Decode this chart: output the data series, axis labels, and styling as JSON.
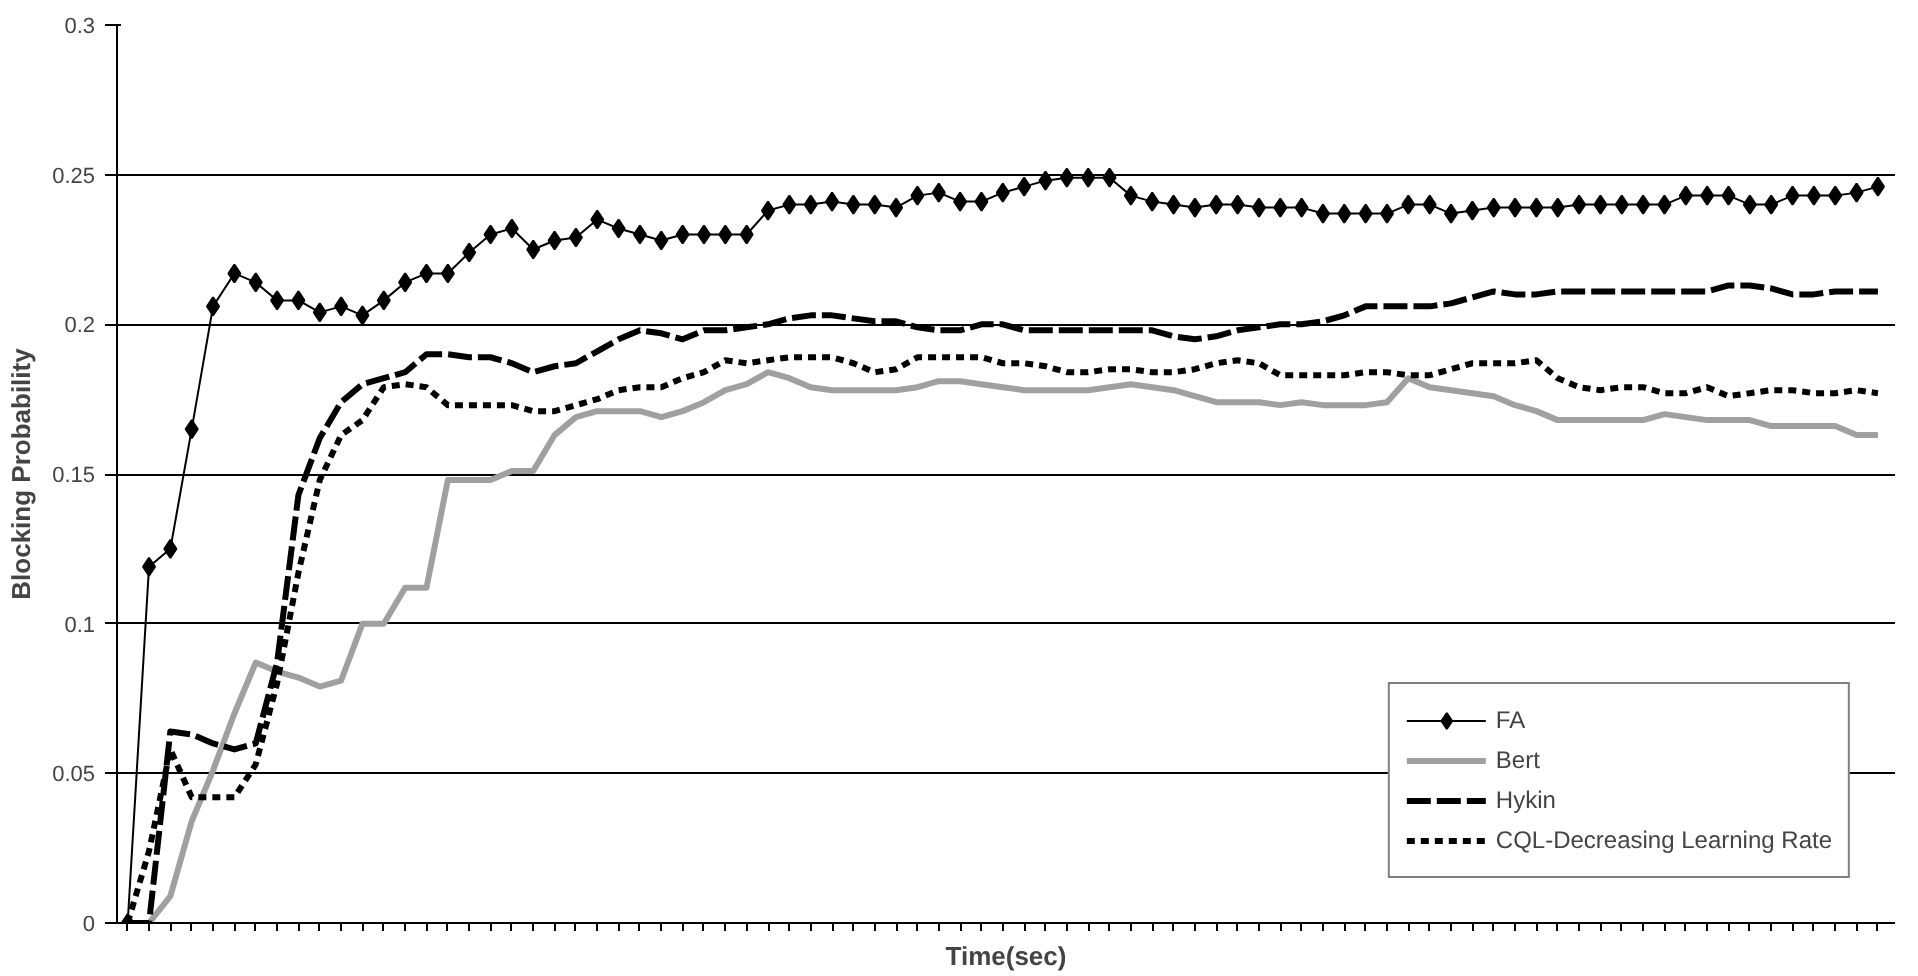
{
  "chart_data": {
    "type": "line",
    "xlabel": "Time(sec)",
    "ylabel": "Blocking Probability",
    "categories": [
      null,
      null,
      null,
      null,
      null,
      null,
      null,
      null,
      null,
      null,
      null,
      null,
      null,
      null,
      null,
      null,
      null,
      null,
      null,
      null,
      null,
      null,
      null,
      null,
      null,
      null,
      null,
      null,
      null,
      null,
      null,
      null,
      null,
      null,
      null,
      null,
      null,
      null,
      null,
      null,
      null,
      null,
      null,
      null,
      null,
      null,
      null,
      null,
      null,
      null,
      null,
      null,
      null,
      null,
      null,
      null,
      null,
      null,
      null,
      null,
      null,
      null,
      null,
      null,
      null,
      null,
      null,
      null,
      null,
      null,
      null,
      null,
      null,
      null,
      null,
      null,
      null,
      null,
      null,
      null,
      null,
      null,
      null
    ],
    "ylim": [
      0,
      0.3
    ],
    "yticks": [
      0,
      0.05,
      0.1,
      0.15,
      0.2,
      0.25,
      0.3
    ],
    "grid": "y",
    "legend": "bottom right",
    "series": [
      {
        "name": "FA",
        "color": "#000000",
        "marker": "diamond",
        "line_style": "solid",
        "values": [
          0,
          0.119,
          0.125,
          0.165,
          0.206,
          0.217,
          0.214,
          0.208,
          0.208,
          0.204,
          0.206,
          0.203,
          0.208,
          0.214,
          0.217,
          0.217,
          0.224,
          0.23,
          0.232,
          0.225,
          0.228,
          0.229,
          0.235,
          0.232,
          0.23,
          0.228,
          0.23,
          0.23,
          0.23,
          0.23,
          0.238,
          0.24,
          0.24,
          0.241,
          0.24,
          0.24,
          0.239,
          0.243,
          0.244,
          0.241,
          0.241,
          0.244,
          0.246,
          0.248,
          0.249,
          0.249,
          0.249,
          0.243,
          0.241,
          0.24,
          0.239,
          0.24,
          0.24,
          0.239,
          0.239,
          0.239,
          0.237,
          0.237,
          0.237,
          0.237,
          0.24,
          0.24,
          0.237,
          0.238,
          0.239,
          0.239,
          0.239,
          0.239,
          0.24,
          0.24,
          0.24,
          0.24,
          0.24,
          0.243,
          0.243,
          0.243,
          0.24,
          0.24,
          0.243,
          0.243,
          0.243,
          0.244,
          0.246
        ]
      },
      {
        "name": "Bert",
        "color": "#a0a0a0",
        "marker": "none",
        "line_style": "solid",
        "values": [
          0,
          0,
          0.009,
          0.034,
          0.051,
          0.07,
          0.087,
          0.084,
          0.082,
          0.079,
          0.081,
          0.1,
          0.1,
          0.112,
          0.112,
          0.148,
          0.148,
          0.148,
          0.151,
          0.151,
          0.163,
          0.169,
          0.171,
          0.171,
          0.171,
          0.169,
          0.171,
          0.174,
          0.178,
          0.18,
          0.184,
          0.182,
          0.179,
          0.178,
          0.178,
          0.178,
          0.178,
          0.179,
          0.181,
          0.181,
          0.18,
          0.179,
          0.178,
          0.178,
          0.178,
          0.178,
          0.179,
          0.18,
          0.179,
          0.178,
          0.176,
          0.174,
          0.174,
          0.174,
          0.173,
          0.174,
          0.173,
          0.173,
          0.173,
          0.174,
          0.182,
          0.179,
          0.178,
          0.177,
          0.176,
          0.173,
          0.171,
          0.168,
          0.168,
          0.168,
          0.168,
          0.168,
          0.17,
          0.169,
          0.168,
          0.168,
          0.168,
          0.166,
          0.166,
          0.166,
          0.166,
          0.163,
          0.163
        ]
      },
      {
        "name": "Hykin",
        "color": "#000000",
        "marker": "none",
        "line_style": "dashed",
        "values": [
          0,
          0,
          0.064,
          0.063,
          0.06,
          0.058,
          0.06,
          0.087,
          0.143,
          0.162,
          0.174,
          0.18,
          0.182,
          0.184,
          0.19,
          0.19,
          0.189,
          0.189,
          0.187,
          0.184,
          0.186,
          0.187,
          0.191,
          0.195,
          0.198,
          0.197,
          0.195,
          0.198,
          0.198,
          0.199,
          0.2,
          0.202,
          0.203,
          0.203,
          0.202,
          0.201,
          0.201,
          0.199,
          0.198,
          0.198,
          0.2,
          0.2,
          0.198,
          0.198,
          0.198,
          0.198,
          0.198,
          0.198,
          0.198,
          0.196,
          0.195,
          0.196,
          0.198,
          0.199,
          0.2,
          0.2,
          0.201,
          0.203,
          0.206,
          0.206,
          0.206,
          0.206,
          0.207,
          0.209,
          0.211,
          0.21,
          0.21,
          0.211,
          0.211,
          0.211,
          0.211,
          0.211,
          0.211,
          0.211,
          0.211,
          0.213,
          0.213,
          0.212,
          0.21,
          0.21,
          0.211,
          0.211,
          0.211
        ]
      },
      {
        "name": "CQL-Decreasing Learning Rate",
        "color": "#000000",
        "marker": "none",
        "line_style": "dotted",
        "values": [
          0,
          0.024,
          0.058,
          0.042,
          0.042,
          0.042,
          0.053,
          0.08,
          0.117,
          0.148,
          0.163,
          0.168,
          0.179,
          0.18,
          0.179,
          0.173,
          0.173,
          0.173,
          0.173,
          0.171,
          0.171,
          0.173,
          0.175,
          0.178,
          0.179,
          0.179,
          0.182,
          0.184,
          0.188,
          0.187,
          0.188,
          0.189,
          0.189,
          0.189,
          0.187,
          0.184,
          0.185,
          0.189,
          0.189,
          0.189,
          0.189,
          0.187,
          0.187,
          0.186,
          0.184,
          0.184,
          0.185,
          0.185,
          0.184,
          0.184,
          0.185,
          0.187,
          0.188,
          0.187,
          0.183,
          0.183,
          0.183,
          0.183,
          0.184,
          0.184,
          0.183,
          0.183,
          0.185,
          0.187,
          0.187,
          0.187,
          0.188,
          0.182,
          0.179,
          0.178,
          0.179,
          0.179,
          0.177,
          0.177,
          0.179,
          0.176,
          0.177,
          0.178,
          0.178,
          0.177,
          0.177,
          0.178,
          0.177
        ]
      }
    ]
  }
}
